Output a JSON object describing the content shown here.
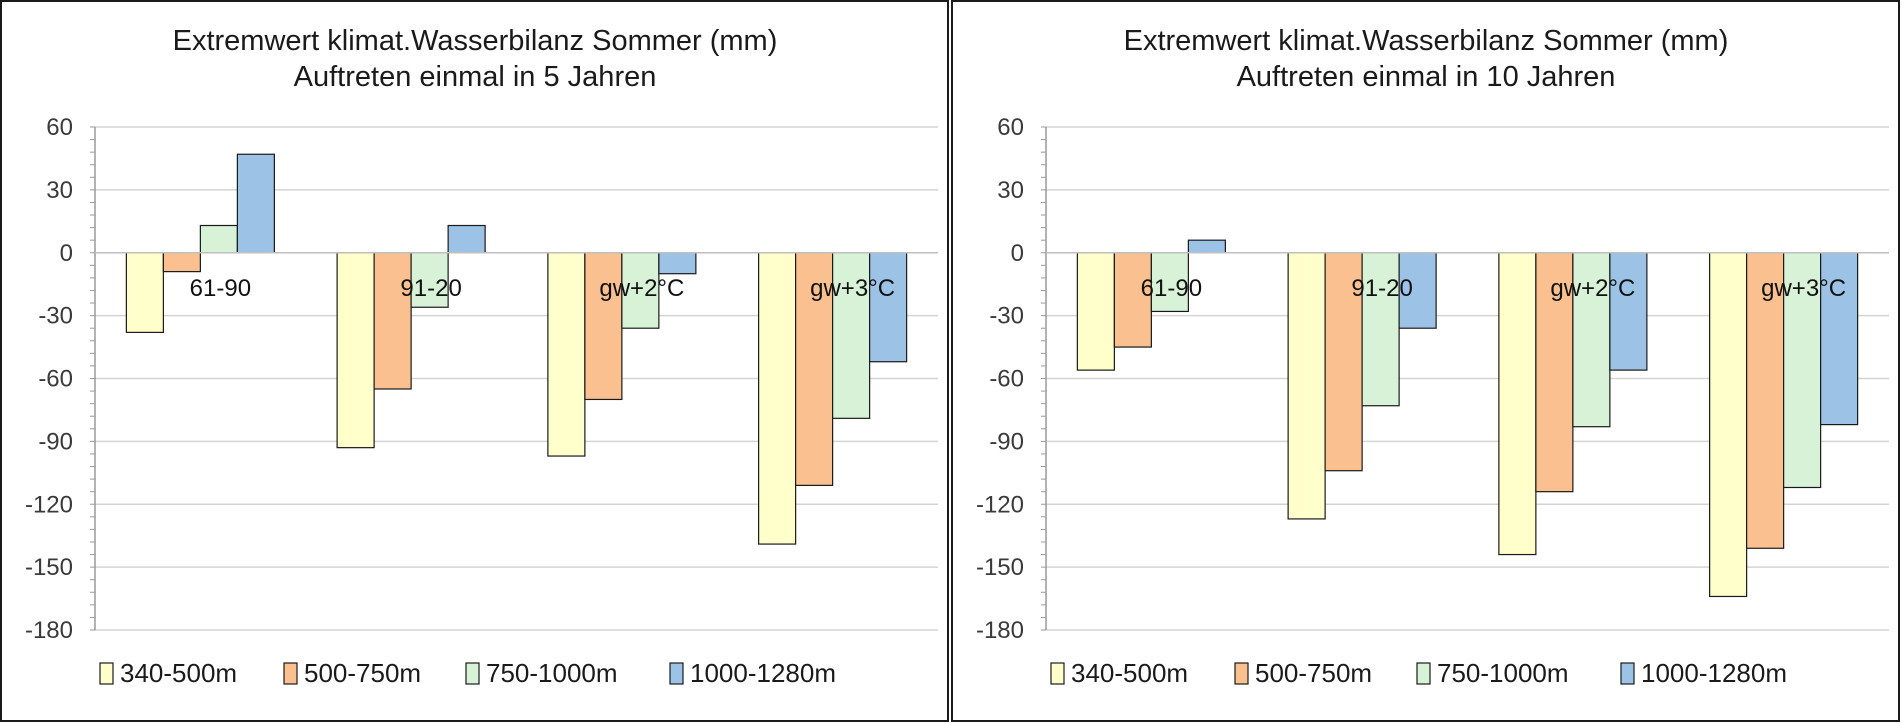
{
  "chart_data": [
    {
      "type": "bar",
      "title": "Extremwert klimat.Wasserbilanz Sommer (mm)",
      "subtitle": "Auftreten einmal in 5 Jahren",
      "categories": [
        "61-90",
        "91-20",
        "gw+2°C",
        "gw+3°C"
      ],
      "ylim": [
        -180,
        60
      ],
      "yticks": [
        60,
        30,
        0,
        -30,
        -60,
        -90,
        -120,
        -150,
        -180
      ],
      "grid": true,
      "legend_position": "bottom",
      "series": [
        {
          "name": "340-500m",
          "color": "#FFFFCC",
          "values": [
            -38,
            -93,
            -97,
            -139
          ]
        },
        {
          "name": "500-750m",
          "color": "#FAC090",
          "values": [
            -9,
            -65,
            -70,
            -111
          ]
        },
        {
          "name": "750-1000m",
          "color": "#D7F2D7",
          "values": [
            13,
            -26,
            -36,
            -79
          ]
        },
        {
          "name": "1000-1280m",
          "color": "#9CC3E6",
          "values": [
            47,
            13,
            -10,
            -52
          ]
        }
      ]
    },
    {
      "type": "bar",
      "title": "Extremwert klimat.Wasserbilanz Sommer (mm)",
      "subtitle": "Auftreten einmal in 10 Jahren",
      "categories": [
        "61-90",
        "91-20",
        "gw+2°C",
        "gw+3°C"
      ],
      "ylim": [
        -180,
        60
      ],
      "yticks": [
        60,
        30,
        0,
        -30,
        -60,
        -90,
        -120,
        -150,
        -180
      ],
      "grid": true,
      "legend_position": "bottom",
      "series": [
        {
          "name": "340-500m",
          "color": "#FFFFCC",
          "values": [
            -56,
            -127,
            -144,
            -164
          ]
        },
        {
          "name": "500-750m",
          "color": "#FAC090",
          "values": [
            -45,
            -104,
            -114,
            -141
          ]
        },
        {
          "name": "750-1000m",
          "color": "#D7F2D7",
          "values": [
            -28,
            -73,
            -83,
            -112
          ]
        },
        {
          "name": "1000-1280m",
          "color": "#9CC3E6",
          "values": [
            6,
            -36,
            -56,
            -82
          ]
        }
      ]
    }
  ]
}
